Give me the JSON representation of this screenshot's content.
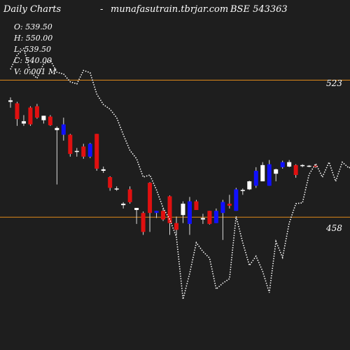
{
  "header": {
    "title": "Daily Charts",
    "separator": "-",
    "site": "munafasutrain.tbrjar.com",
    "symbol": "BSE 543363"
  },
  "ohlc": {
    "open": "O: 539.50",
    "high": "H: 550.00",
    "low": "L: 539.50",
    "close": "C: 540.00",
    "volume": "V: 0.001 M"
  },
  "colors": {
    "background": "#1e1e1e",
    "up": "#1010ff",
    "down": "#e01010",
    "neutral": "#ffffff",
    "level_line": "#e08a1a",
    "dotted_line": "#ffffff"
  },
  "chart_data": {
    "type": "candlestick",
    "level_lines": [
      523,
      458
    ],
    "level_labels": [
      "523",
      "458"
    ],
    "ylim": [
      395,
      561
    ],
    "candles": [
      {
        "o": 513.4,
        "h": 514.8,
        "l": 509.9,
        "c": 512.7,
        "t": "neutral"
      },
      {
        "o": 512.0,
        "h": 512.7,
        "l": 501.3,
        "c": 504.5,
        "t": "down"
      },
      {
        "o": 503.5,
        "h": 506.4,
        "l": 501.3,
        "c": 502.4,
        "t": "neutral"
      },
      {
        "o": 510.0,
        "h": 510.6,
        "l": 501.3,
        "c": 502.0,
        "t": "down"
      },
      {
        "o": 510.6,
        "h": 511.7,
        "l": 504.7,
        "c": 505.2,
        "t": "down"
      },
      {
        "o": 504.0,
        "h": 506.1,
        "l": 502.4,
        "c": 506.1,
        "t": "neutral"
      },
      {
        "o": 505.7,
        "h": 506.4,
        "l": 501.3,
        "c": 501.6,
        "t": "down"
      },
      {
        "o": 500.3,
        "h": 501.0,
        "l": 473.5,
        "c": 499.3,
        "t": "neutral"
      },
      {
        "o": 497.1,
        "h": 505.2,
        "l": 494.3,
        "c": 502.0,
        "t": "up"
      },
      {
        "o": 497.1,
        "h": 497.5,
        "l": 486.7,
        "c": 488.0,
        "t": "down"
      },
      {
        "o": 489.1,
        "h": 490.8,
        "l": 486.7,
        "c": 489.4,
        "t": "neutral"
      },
      {
        "o": 491.5,
        "h": 492.8,
        "l": 485.7,
        "c": 486.7,
        "t": "down"
      },
      {
        "o": 486.7,
        "h": 493.2,
        "l": 486.0,
        "c": 492.8,
        "t": "up"
      },
      {
        "o": 497.5,
        "h": 497.5,
        "l": 480.0,
        "c": 481.0,
        "t": "down"
      },
      {
        "o": 480.7,
        "h": 482.0,
        "l": 479.0,
        "c": 480.0,
        "t": "neutral"
      },
      {
        "o": 477.0,
        "h": 477.4,
        "l": 470.5,
        "c": 471.9,
        "t": "down"
      },
      {
        "o": 471.2,
        "h": 472.6,
        "l": 470.5,
        "c": 471.6,
        "t": "neutral"
      },
      {
        "o": 464.4,
        "h": 465.1,
        "l": 462.1,
        "c": 463.7,
        "t": "neutral"
      },
      {
        "o": 471.2,
        "h": 472.6,
        "l": 464.4,
        "c": 465.1,
        "t": "down"
      },
      {
        "o": 462.4,
        "h": 462.4,
        "l": 454.8,
        "c": 461.4,
        "t": "neutral"
      },
      {
        "o": 460.0,
        "h": 460.7,
        "l": 449.6,
        "c": 451.0,
        "t": "down"
      },
      {
        "o": 474.3,
        "h": 474.6,
        "l": 451.0,
        "c": 460.0,
        "t": "down"
      },
      {
        "o": 460.0,
        "h": 461.0,
        "l": 457.6,
        "c": 461.0,
        "t": "up"
      },
      {
        "o": 461.0,
        "h": 462.1,
        "l": 456.2,
        "c": 456.9,
        "t": "down"
      },
      {
        "o": 467.9,
        "h": 468.3,
        "l": 449.6,
        "c": 455.2,
        "t": "down"
      },
      {
        "o": 455.2,
        "h": 458.3,
        "l": 449.3,
        "c": 452.0,
        "t": "down"
      },
      {
        "o": 459.0,
        "h": 465.5,
        "l": 455.2,
        "c": 464.4,
        "t": "neutral"
      },
      {
        "o": 454.8,
        "h": 467.6,
        "l": 449.6,
        "c": 465.5,
        "t": "up"
      },
      {
        "o": 465.5,
        "h": 466.2,
        "l": 461.4,
        "c": 461.4,
        "t": "down"
      },
      {
        "o": 457.6,
        "h": 459.6,
        "l": 454.8,
        "c": 456.9,
        "t": "neutral"
      },
      {
        "o": 461.0,
        "h": 461.0,
        "l": 454.5,
        "c": 454.8,
        "t": "down"
      },
      {
        "o": 455.2,
        "h": 462.1,
        "l": 455.2,
        "c": 461.0,
        "t": "up"
      },
      {
        "o": 460.0,
        "h": 466.2,
        "l": 447.2,
        "c": 465.2,
        "t": "up"
      },
      {
        "o": 463.4,
        "h": 468.6,
        "l": 462.1,
        "c": 464.4,
        "t": "down"
      },
      {
        "o": 461.0,
        "h": 471.9,
        "l": 461.0,
        "c": 471.2,
        "t": "up"
      },
      {
        "o": 470.9,
        "h": 471.6,
        "l": 468.6,
        "c": 470.9,
        "t": "neutral"
      },
      {
        "o": 471.2,
        "h": 475.3,
        "l": 470.9,
        "c": 475.0,
        "t": "neutral"
      },
      {
        "o": 472.9,
        "h": 481.7,
        "l": 471.9,
        "c": 480.0,
        "t": "up"
      },
      {
        "o": 475.0,
        "h": 484.1,
        "l": 475.0,
        "c": 482.7,
        "t": "neutral"
      },
      {
        "o": 472.9,
        "h": 485.1,
        "l": 472.9,
        "c": 483.1,
        "t": "up"
      },
      {
        "o": 478.6,
        "h": 481.0,
        "l": 475.0,
        "c": 480.7,
        "t": "neutral"
      },
      {
        "o": 481.7,
        "h": 484.8,
        "l": 481.0,
        "c": 484.1,
        "t": "up"
      },
      {
        "o": 484.1,
        "h": 485.1,
        "l": 481.7,
        "c": 482.0,
        "t": "neutral"
      },
      {
        "o": 482.7,
        "h": 483.1,
        "l": 476.7,
        "c": 478.0,
        "t": "down"
      },
      {
        "o": 482.4,
        "h": 483.1,
        "l": 481.7,
        "c": 482.7,
        "t": "neutral"
      },
      {
        "o": 482.0,
        "h": 482.7,
        "l": 481.7,
        "c": 482.4,
        "t": "neutral"
      },
      {
        "o": 482.4,
        "h": 482.7,
        "l": 481.3,
        "c": 482.0,
        "t": "down"
      }
    ],
    "overlay_line": [
      528.1,
      534.9,
      538.0,
      526.7,
      523.9,
      530.8,
      532.5,
      526.7,
      525.9,
      522.2,
      521.2,
      527.6,
      526.5,
      516.4,
      511.4,
      509.2,
      505.2,
      497.1,
      489.7,
      485.7,
      477.0,
      478.0,
      470.9,
      462.4,
      456.9,
      448.6,
      419.1,
      431.3,
      445.9,
      441.7,
      438.6,
      423.9,
      426.7,
      428.8,
      458.3,
      445.9,
      435.1,
      439.5,
      432.3,
      422.2,
      446.5,
      438.9,
      455.2,
      464.4,
      464.8,
      478.3,
      483.4,
      477.0,
      484.1,
      475.0,
      484.1,
      481.3,
      483.1,
      480.7
    ]
  }
}
